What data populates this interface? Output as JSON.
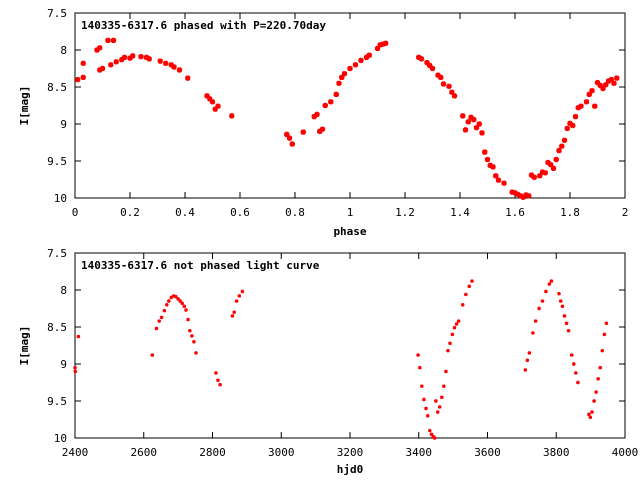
{
  "chart_data": [
    {
      "type": "scatter",
      "title": "140335-6317.6 phased with P=220.70day",
      "xlabel": "phase",
      "ylabel": "I[mag]",
      "xlim": [
        0,
        2
      ],
      "ylim": [
        10,
        7.5
      ],
      "y_inverted": true,
      "grid": false,
      "legend": "none",
      "marker_color": "#ff0000",
      "x_ticks": [
        "0",
        "0.2",
        "0.4",
        "0.6",
        "0.8",
        "1",
        "1.2",
        "1.4",
        "1.6",
        "1.8",
        "2"
      ],
      "y_ticks": [
        "7.5",
        "8",
        "8.5",
        "9",
        "9.5",
        "10"
      ],
      "series": [
        {
          "points": [
            [
              0.01,
              8.4
            ],
            [
              0.03,
              8.37
            ],
            [
              0.03,
              8.18
            ],
            [
              0.08,
              8.0
            ],
            [
              0.09,
              7.97
            ],
            [
              0.09,
              8.27
            ],
            [
              0.1,
              8.25
            ],
            [
              0.12,
              7.87
            ],
            [
              0.13,
              8.2
            ],
            [
              0.14,
              7.87
            ],
            [
              0.15,
              8.16
            ],
            [
              0.17,
              8.13
            ],
            [
              0.18,
              8.1
            ],
            [
              0.2,
              8.11
            ],
            [
              0.21,
              8.08
            ],
            [
              0.24,
              8.09
            ],
            [
              0.26,
              8.1
            ],
            [
              0.27,
              8.12
            ],
            [
              0.31,
              8.15
            ],
            [
              0.33,
              8.18
            ],
            [
              0.35,
              8.2
            ],
            [
              0.36,
              8.23
            ],
            [
              0.38,
              8.27
            ],
            [
              0.41,
              8.38
            ],
            [
              0.48,
              8.62
            ],
            [
              0.49,
              8.66
            ],
            [
              0.5,
              8.7
            ],
            [
              0.51,
              8.8
            ],
            [
              0.52,
              8.76
            ],
            [
              0.57,
              8.89
            ],
            [
              0.77,
              9.14
            ],
            [
              0.78,
              9.19
            ],
            [
              0.79,
              9.27
            ],
            [
              0.83,
              9.11
            ],
            [
              0.87,
              8.9
            ],
            [
              0.88,
              8.87
            ],
            [
              0.89,
              9.1
            ],
            [
              0.9,
              9.07
            ],
            [
              0.91,
              8.75
            ],
            [
              0.93,
              8.7
            ],
            [
              0.95,
              8.6
            ],
            [
              0.96,
              8.45
            ],
            [
              0.97,
              8.37
            ],
            [
              0.98,
              8.32
            ],
            [
              1.0,
              8.25
            ],
            [
              1.02,
              8.2
            ],
            [
              1.04,
              8.14
            ],
            [
              1.06,
              8.1
            ],
            [
              1.07,
              8.07
            ],
            [
              1.1,
              7.98
            ],
            [
              1.11,
              7.93
            ],
            [
              1.12,
              7.92
            ],
            [
              1.13,
              7.91
            ],
            [
              1.25,
              8.1
            ],
            [
              1.26,
              8.12
            ],
            [
              1.28,
              8.17
            ],
            [
              1.29,
              8.21
            ],
            [
              1.3,
              8.25
            ],
            [
              1.32,
              8.34
            ],
            [
              1.33,
              8.37
            ],
            [
              1.34,
              8.46
            ],
            [
              1.36,
              8.49
            ],
            [
              1.37,
              8.57
            ],
            [
              1.38,
              8.62
            ],
            [
              1.41,
              8.89
            ],
            [
              1.42,
              9.08
            ],
            [
              1.43,
              8.97
            ],
            [
              1.44,
              8.91
            ],
            [
              1.45,
              8.94
            ],
            [
              1.46,
              9.05
            ],
            [
              1.47,
              9.0
            ],
            [
              1.48,
              9.12
            ],
            [
              1.49,
              9.38
            ],
            [
              1.5,
              9.48
            ],
            [
              1.51,
              9.56
            ],
            [
              1.52,
              9.58
            ],
            [
              1.53,
              9.7
            ],
            [
              1.54,
              9.76
            ],
            [
              1.56,
              9.8
            ],
            [
              1.59,
              9.92
            ],
            [
              1.6,
              9.93
            ],
            [
              1.61,
              9.95
            ],
            [
              1.62,
              9.97
            ],
            [
              1.63,
              9.99
            ],
            [
              1.64,
              9.96
            ],
            [
              1.65,
              9.97
            ],
            [
              1.66,
              9.69
            ],
            [
              1.67,
              9.72
            ],
            [
              1.69,
              9.7
            ],
            [
              1.7,
              9.65
            ],
            [
              1.71,
              9.66
            ],
            [
              1.72,
              9.52
            ],
            [
              1.73,
              9.55
            ],
            [
              1.74,
              9.6
            ],
            [
              1.75,
              9.48
            ],
            [
              1.76,
              9.36
            ],
            [
              1.77,
              9.3
            ],
            [
              1.78,
              9.22
            ],
            [
              1.79,
              9.06
            ],
            [
              1.8,
              8.99
            ],
            [
              1.81,
              9.02
            ],
            [
              1.82,
              8.9
            ],
            [
              1.83,
              8.78
            ],
            [
              1.84,
              8.76
            ],
            [
              1.86,
              8.7
            ],
            [
              1.87,
              8.6
            ],
            [
              1.88,
              8.55
            ],
            [
              1.89,
              8.76
            ],
            [
              1.9,
              8.44
            ],
            [
              1.91,
              8.48
            ],
            [
              1.92,
              8.52
            ],
            [
              1.93,
              8.47
            ],
            [
              1.94,
              8.42
            ],
            [
              1.95,
              8.4
            ],
            [
              1.96,
              8.45
            ],
            [
              1.97,
              8.38
            ]
          ]
        }
      ]
    },
    {
      "type": "scatter",
      "title": "140335-6317.6 not phased light curve",
      "xlabel": "hjd0",
      "ylabel": "I[mag]",
      "xlim": [
        2400,
        4000
      ],
      "ylim": [
        10,
        7.5
      ],
      "y_inverted": true,
      "grid": false,
      "legend": "none",
      "marker_color": "#ff0000",
      "x_ticks": [
        "2400",
        "2600",
        "2800",
        "3000",
        "3200",
        "3400",
        "3600",
        "3800",
        "4000"
      ],
      "y_ticks": [
        "7.5",
        "8",
        "8.5",
        "9",
        "9.5",
        "10"
      ],
      "series": [
        {
          "points": [
            [
              2400,
              9.05
            ],
            [
              2401,
              9.1
            ],
            [
              2410,
              8.63
            ],
            [
              2625,
              8.88
            ],
            [
              2637,
              8.52
            ],
            [
              2645,
              8.42
            ],
            [
              2652,
              8.37
            ],
            [
              2660,
              8.28
            ],
            [
              2667,
              8.2
            ],
            [
              2673,
              8.15
            ],
            [
              2680,
              8.1
            ],
            [
              2687,
              8.08
            ],
            [
              2693,
              8.09
            ],
            [
              2700,
              8.12
            ],
            [
              2706,
              8.15
            ],
            [
              2712,
              8.18
            ],
            [
              2718,
              8.22
            ],
            [
              2723,
              8.27
            ],
            [
              2729,
              8.4
            ],
            [
              2734,
              8.55
            ],
            [
              2740,
              8.62
            ],
            [
              2746,
              8.7
            ],
            [
              2752,
              8.85
            ],
            [
              2810,
              9.12
            ],
            [
              2816,
              9.22
            ],
            [
              2822,
              9.28
            ],
            [
              2858,
              8.35
            ],
            [
              2863,
              8.3
            ],
            [
              2870,
              8.15
            ],
            [
              2878,
              8.08
            ],
            [
              2887,
              8.02
            ],
            [
              3398,
              8.88
            ],
            [
              3403,
              9.05
            ],
            [
              3409,
              9.3
            ],
            [
              3415,
              9.48
            ],
            [
              3421,
              9.6
            ],
            [
              3426,
              9.7
            ],
            [
              3432,
              9.9
            ],
            [
              3437,
              9.95
            ],
            [
              3442,
              9.98
            ],
            [
              3446,
              10.0
            ],
            [
              3450,
              9.5
            ],
            [
              3455,
              9.65
            ],
            [
              3461,
              9.58
            ],
            [
              3467,
              9.45
            ],
            [
              3473,
              9.3
            ],
            [
              3479,
              9.1
            ],
            [
              3485,
              8.82
            ],
            [
              3491,
              8.72
            ],
            [
              3498,
              8.6
            ],
            [
              3504,
              8.51
            ],
            [
              3510,
              8.46
            ],
            [
              3516,
              8.42
            ],
            [
              3528,
              8.2
            ],
            [
              3537,
              8.06
            ],
            [
              3547,
              7.95
            ],
            [
              3555,
              7.88
            ],
            [
              3710,
              9.08
            ],
            [
              3716,
              8.95
            ],
            [
              3722,
              8.85
            ],
            [
              3732,
              8.58
            ],
            [
              3740,
              8.42
            ],
            [
              3750,
              8.25
            ],
            [
              3760,
              8.15
            ],
            [
              3770,
              8.02
            ],
            [
              3780,
              7.92
            ],
            [
              3786,
              7.88
            ],
            [
              3808,
              8.05
            ],
            [
              3813,
              8.15
            ],
            [
              3818,
              8.22
            ],
            [
              3824,
              8.35
            ],
            [
              3830,
              8.45
            ],
            [
              3836,
              8.55
            ],
            [
              3845,
              8.88
            ],
            [
              3851,
              9.0
            ],
            [
              3857,
              9.12
            ],
            [
              3863,
              9.25
            ],
            [
              3895,
              9.68
            ],
            [
              3899,
              9.72
            ],
            [
              3904,
              9.65
            ],
            [
              3910,
              9.5
            ],
            [
              3916,
              9.38
            ],
            [
              3922,
              9.2
            ],
            [
              3928,
              9.05
            ],
            [
              3934,
              8.82
            ],
            [
              3940,
              8.6
            ],
            [
              3946,
              8.45
            ]
          ]
        }
      ]
    }
  ]
}
